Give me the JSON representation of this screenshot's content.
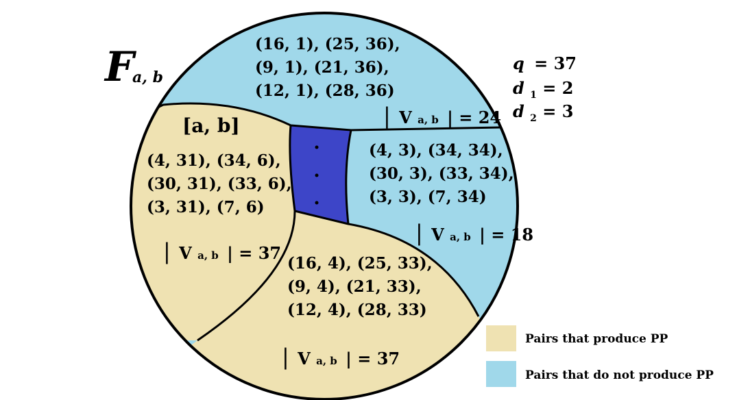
{
  "title": {
    "symbol": "F",
    "subscript": "a, b"
  },
  "params": {
    "q": {
      "label": "q",
      "value": "= 37"
    },
    "d1": {
      "label": "d",
      "sub": "1",
      "value": "= 2"
    },
    "d2": {
      "label": "d",
      "sub": "2",
      "value": "= 3"
    }
  },
  "regions": {
    "top": {
      "lines": [
        "(16, 1), (25, 36),",
        "(9, 1), (21, 36),",
        "(12, 1), (28, 36)"
      ],
      "count": {
        "bar": "|",
        "v": "V",
        "sub": "a, b",
        "value": "| = 24"
      }
    },
    "left": {
      "header": "[a, b]",
      "lines": [
        "(4, 31), (34, 6),",
        "(30, 31), (33, 6),",
        "(3, 31), (7, 6)"
      ],
      "count": {
        "bar": "|",
        "v": "V",
        "sub": "a, b",
        "value": "| = 37"
      }
    },
    "right": {
      "lines": [
        "(4, 3), (34, 34),",
        "(30, 3), (33, 34),",
        "(3, 3), (7, 34)"
      ],
      "count": {
        "bar": "|",
        "v": "V",
        "sub": "a, b",
        "value": "| = 18"
      }
    },
    "bottom": {
      "lines": [
        "(16, 4), (25, 33),",
        "(9, 4), (21, 33),",
        "(12, 4), (28, 33)"
      ],
      "count": {
        "bar": "|",
        "v": "V",
        "sub": "a, b",
        "value": "| = 37"
      }
    }
  },
  "legend": [
    {
      "label": "Pairs that produce PP",
      "color": "#efe2b2"
    },
    {
      "label": "Pairs that do not produce  PP",
      "color": "#a0d8ea"
    }
  ],
  "colors": {
    "produce": "#efe2b2",
    "not_produce": "#a0d8ea",
    "middle": "#3d45c8",
    "outline": "#000000"
  }
}
